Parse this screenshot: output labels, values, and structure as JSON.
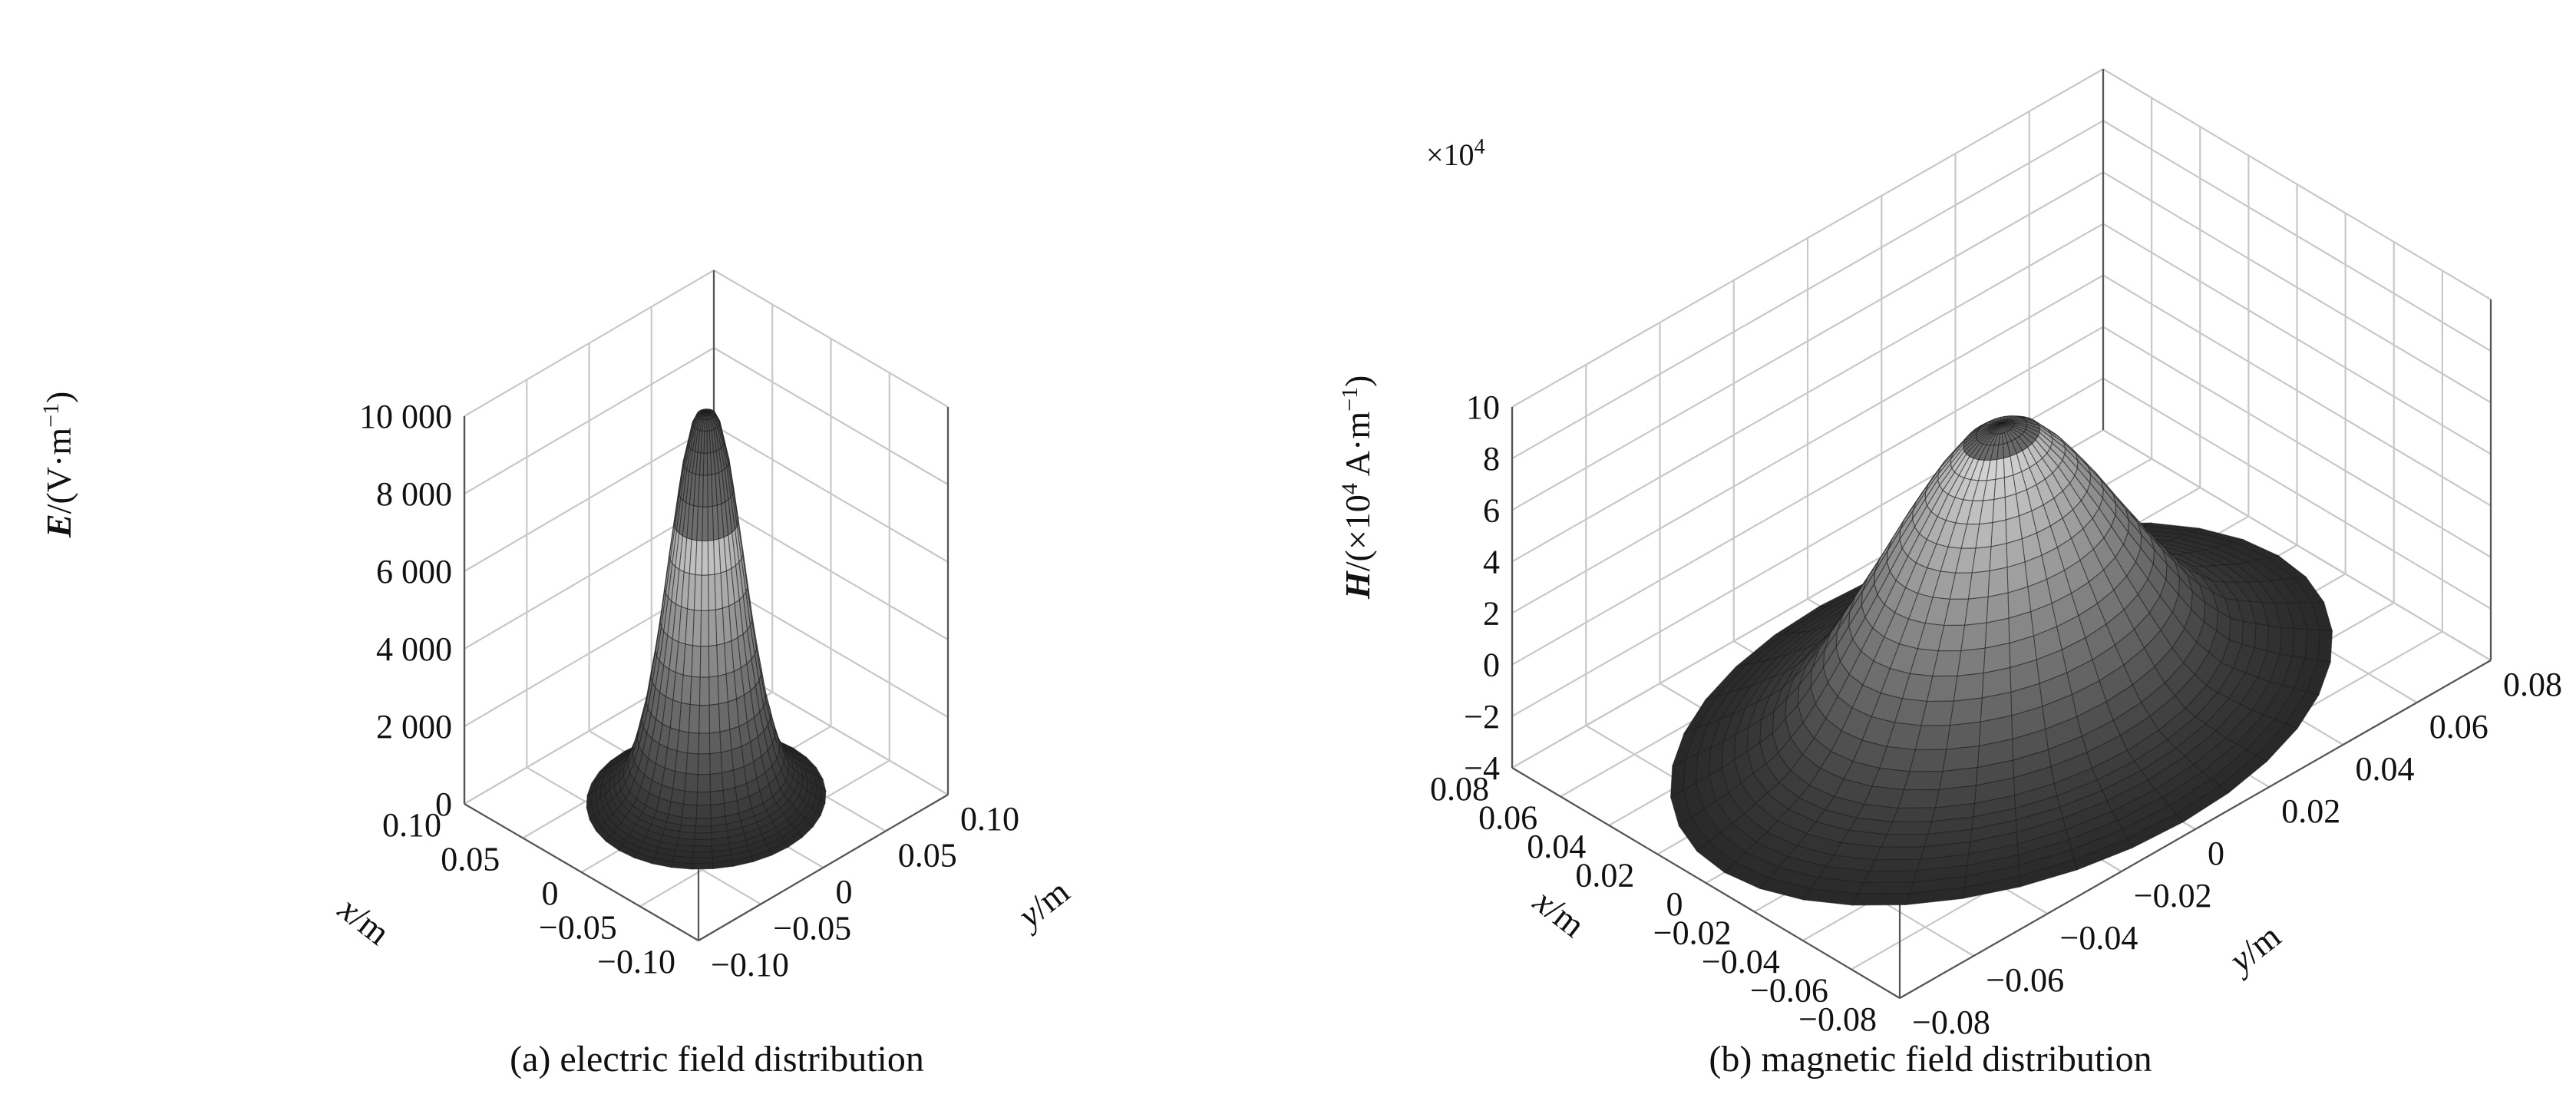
{
  "chart_data": [
    {
      "type": "surface",
      "panel_label": "(a) electric field distribution",
      "xlabel_var": "x",
      "xlabel_unit": "/m",
      "ylabel_var": "y",
      "ylabel_unit": "/m",
      "zlabel_var": "E",
      "zlabel_unit_pre": "/(V·m",
      "zlabel_unit_sup": "−1",
      "zlabel_unit_post": ")",
      "xlim": [
        -0.1,
        0.1
      ],
      "ylim": [
        -0.1,
        0.1
      ],
      "zlim": [
        0,
        10000
      ],
      "x_ticks": [
        0.1,
        0.05,
        0,
        -0.05,
        -0.1
      ],
      "x_tick_labels": [
        "0.10",
        "0.05",
        "0",
        "−0.05",
        "−0.10"
      ],
      "y_ticks": [
        -0.1,
        -0.05,
        0,
        0.05,
        0.1
      ],
      "y_tick_labels": [
        "−0.10",
        "−0.05",
        "0",
        "0.05",
        "0.10"
      ],
      "z_ticks": [
        0,
        2000,
        4000,
        6000,
        8000,
        10000
      ],
      "z_tick_labels": [
        "0",
        "2 000",
        "4 000",
        "6 000",
        "8 000",
        "10 000"
      ],
      "profile": {
        "r_over_rmax": [
          0.0,
          0.1,
          0.2,
          0.3,
          0.4,
          0.5,
          0.6,
          0.7,
          0.85,
          1.0
        ],
        "value": [
          10000,
          9900,
          8600,
          6500,
          4300,
          2600,
          1400,
          700,
          300,
          0
        ]
      },
      "r_max": 0.07,
      "grid": true
    },
    {
      "type": "surface",
      "panel_label": "(b) magnetic field distribution",
      "xlabel_var": "x",
      "xlabel_unit": "/m",
      "ylabel_var": "y",
      "ylabel_unit": "/m",
      "zlabel_var": "H",
      "zlabel_unit_pre": "/(×10",
      "zlabel_unit_sup": "4",
      "zlabel_unit_mid": " A·m",
      "zlabel_unit_sup2": "−1",
      "zlabel_unit_post": ")",
      "z_scale_prefix": "×10",
      "z_scale_exp": "4",
      "xlim": [
        -0.08,
        0.08
      ],
      "ylim": [
        -0.08,
        0.08
      ],
      "zlim": [
        -4,
        10
      ],
      "x_ticks": [
        0.08,
        0.06,
        0.04,
        0.02,
        0,
        -0.02,
        -0.04,
        -0.06,
        -0.08
      ],
      "x_tick_labels": [
        "0.08",
        "0.06",
        "0.04",
        "0.02",
        "0",
        "−0.02",
        "−0.04",
        "−0.06",
        "−0.08"
      ],
      "y_ticks": [
        -0.08,
        -0.06,
        -0.04,
        -0.02,
        0,
        0.02,
        0.04,
        0.06,
        0.08
      ],
      "y_tick_labels": [
        "−0.08",
        "−0.06",
        "−0.04",
        "−0.02",
        "0",
        "0.02",
        "0.04",
        "0.06",
        "0.08"
      ],
      "z_ticks": [
        -4,
        -2,
        0,
        2,
        4,
        6,
        8,
        10
      ],
      "z_tick_labels": [
        "−4",
        "−2",
        "0",
        "2",
        "4",
        "6",
        "8",
        "10"
      ],
      "profile": {
        "r_over_rmax": [
          0.0,
          0.1,
          0.2,
          0.3,
          0.4,
          0.5,
          0.6,
          0.7,
          0.85,
          1.0
        ],
        "value": [
          7.3,
          6.9,
          5.6,
          3.9,
          2.0,
          0.2,
          -1.5,
          -2.6,
          -3.4,
          -4.0
        ]
      },
      "r_max": 0.075,
      "grid": true
    }
  ]
}
